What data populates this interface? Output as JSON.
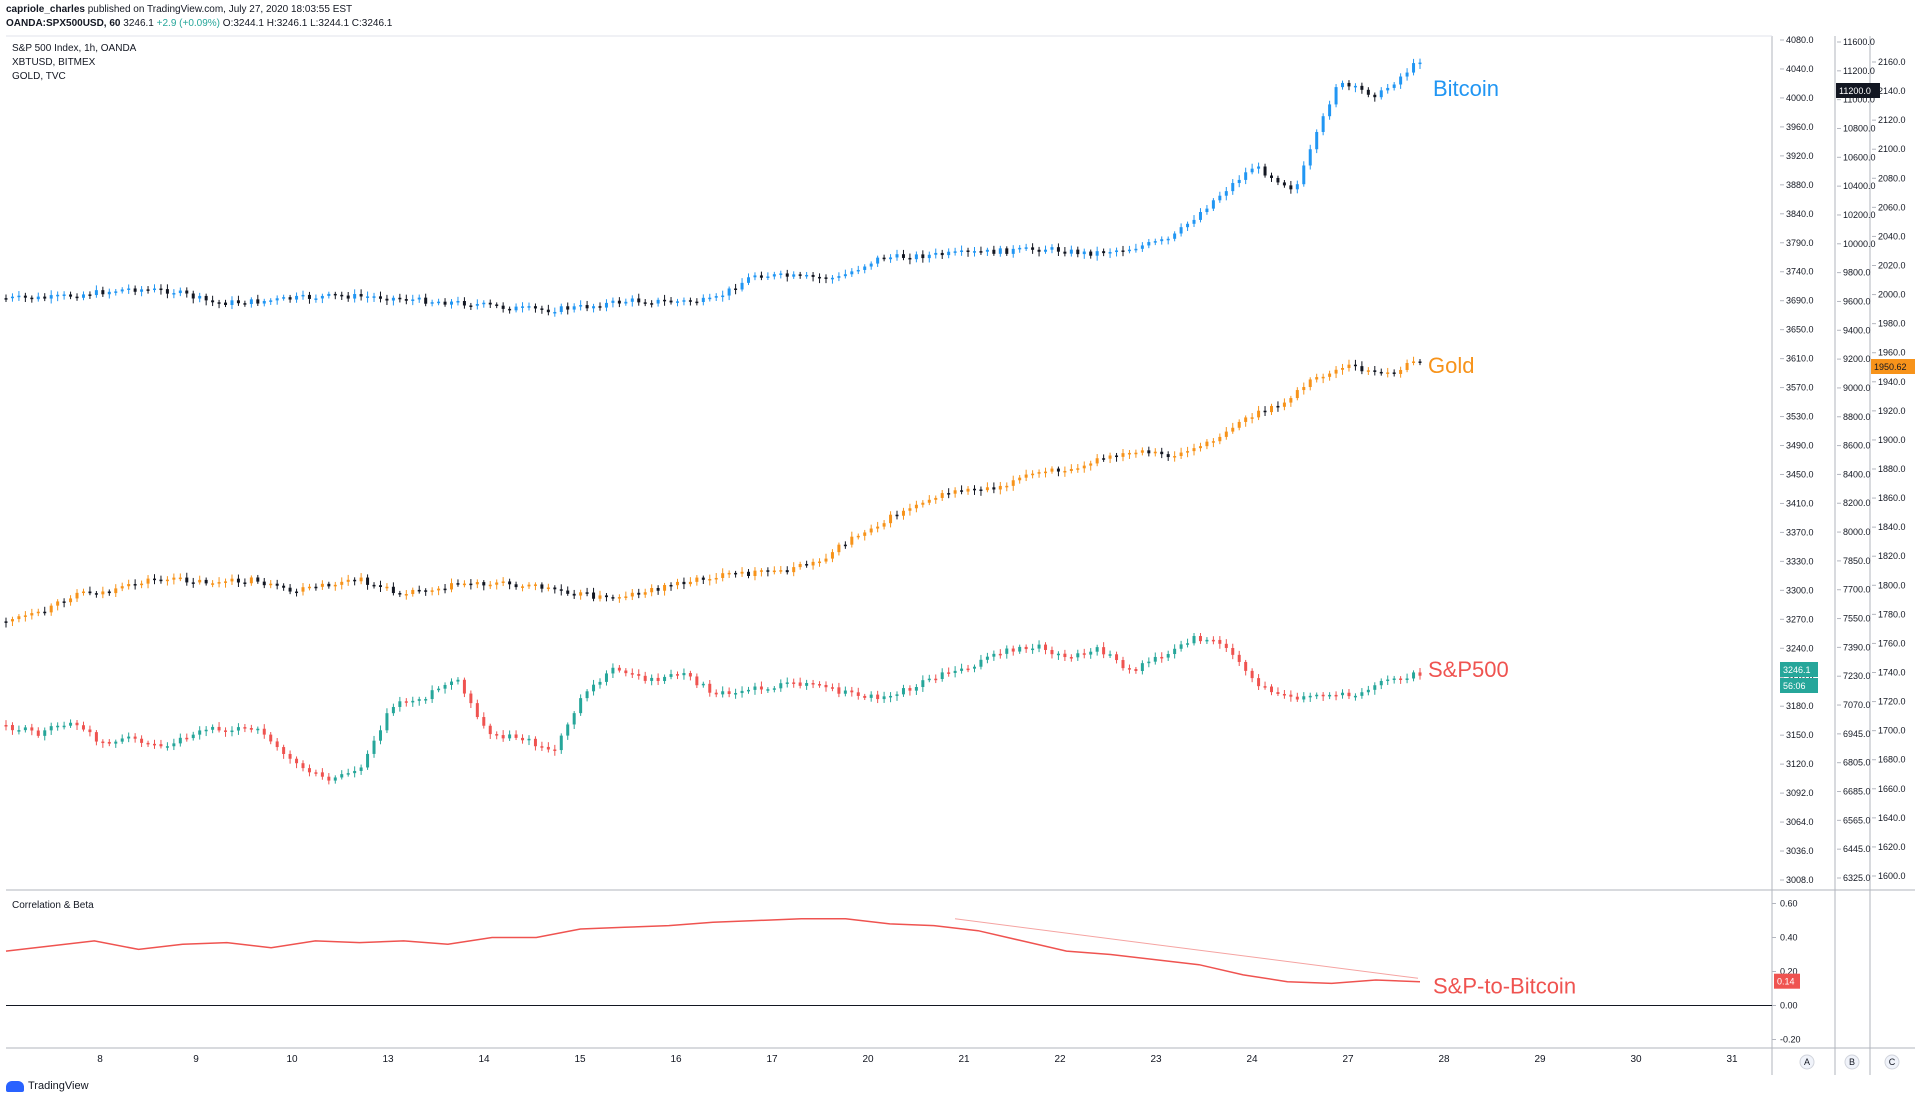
{
  "header": {
    "user": "capriole_charles",
    "published": "published on TradingView.com, July 27, 2020 18:03:55 EST",
    "symbol": "OANDA:SPX500USD, 60",
    "last": "3246.1",
    "change": "+2.9 (+0.09%)",
    "ohlc": "O:3244.1 H:3246.1 L:3244.1 C:3246.1"
  },
  "legend": [
    "S&P 500 Index, 1h, OANDA",
    "XBTUSD, BITMEX",
    "GOLD, TVC"
  ],
  "brand": "TradingView",
  "colors": {
    "bitcoin": "#2196f3",
    "gold": "#f7931a",
    "sp500_up": "#26a69a",
    "sp500_down": "#ef5350",
    "bearish": "#131722",
    "corr": "#ef5350",
    "grid": "#e0e3eb",
    "bg": "#ffffff"
  },
  "chart_data": [
    {
      "type": "candlestick",
      "x_ticks": [
        "8",
        "9",
        "10",
        "13",
        "14",
        "15",
        "16",
        "17",
        "20",
        "21",
        "22",
        "23",
        "24",
        "27",
        "28",
        "29",
        "30",
        "31"
      ],
      "scale_labels": [
        "A",
        "B",
        "C"
      ],
      "series": [
        {
          "name": "S&P500",
          "axis_ticks": [
            "4080.0",
            "4040.0",
            "4000.0",
            "3960.0",
            "3920.0",
            "3880.0",
            "3840.0",
            "3790.0",
            "3740.0",
            "3690.0",
            "3650.0",
            "3610.0",
            "3570.0",
            "3530.0",
            "3490.0",
            "3450.0",
            "3410.0",
            "3370.0",
            "3330.0",
            "3300.0",
            "3270.0",
            "3240.0",
            "3210.0",
            "3180.0",
            "3150.0",
            "3120.0",
            "3092.0",
            "3064.0",
            "3036.0",
            "3008.0"
          ],
          "last_value": "3246.1",
          "countdown": "56:06",
          "path": [
            3190,
            3182,
            3194,
            3172,
            3176,
            3170,
            3186,
            3188,
            3184,
            3150,
            3132,
            3144,
            3212,
            3220,
            3240,
            3180,
            3178,
            3160,
            3228,
            3252,
            3238,
            3246,
            3226,
            3228,
            3232,
            3236,
            3226,
            3220,
            3228,
            3244,
            3254,
            3270,
            3276,
            3262,
            3272,
            3248,
            3266,
            3284,
            3276,
            3232,
            3218,
            3222,
            3224,
            3238,
            3246
          ]
        },
        {
          "name": "Gold",
          "axis_ticks": [
            "2160.0",
            "2140.0",
            "2120.0",
            "2100.0",
            "2080.0",
            "2060.0",
            "2040.0",
            "2020.0",
            "2000.0",
            "1980.0",
            "1960.0",
            "1940.0",
            "1920.0",
            "1900.0",
            "1880.0",
            "1860.0",
            "1840.0",
            "1820.0",
            "1800.0",
            "1780.0",
            "1760.0",
            "1740.0",
            "1720.0",
            "1700.0",
            "1680.0",
            "1660.0",
            "1640.0",
            "1620.0",
            "1600.0"
          ],
          "last_value": "1950.62",
          "path": [
            1782,
            1786,
            1800,
            1800,
            1808,
            1808,
            1806,
            1808,
            1800,
            1804,
            1808,
            1800,
            1802,
            1806,
            1806,
            1804,
            1800,
            1796,
            1800,
            1806,
            1810,
            1812,
            1814,
            1820,
            1836,
            1848,
            1860,
            1866,
            1868,
            1876,
            1880,
            1886,
            1890,
            1888,
            1896,
            1912,
            1920,
            1938,
            1946,
            1940,
            1950
          ]
        },
        {
          "name": "Bitcoin",
          "axis_ticks": [
            "11600.0",
            "11200.0",
            "11000.0",
            "10800.0",
            "10600.0",
            "10400.0",
            "10200.0",
            "10000.0",
            "9800.0",
            "9600.0",
            "9400.0",
            "9200.0",
            "9000.0",
            "8800.0",
            "8600.0",
            "8400.0",
            "8200.0",
            "8000.0",
            "7850.0",
            "7700.0",
            "7550.0",
            "7390.0",
            "7230.0",
            "7070.0",
            "6945.0",
            "6805.0",
            "6685.0",
            "6565.0",
            "6445.0",
            "6325.0"
          ],
          "last_value": "11200.0",
          "path": [
            9180,
            9180,
            9220,
            9260,
            9240,
            9140,
            9150,
            9180,
            9200,
            9190,
            9160,
            9140,
            9100,
            9080,
            9110,
            9160,
            9150,
            9160,
            9380,
            9360,
            9350,
            9520,
            9540,
            9560,
            9580,
            9600,
            9560,
            9600,
            9680,
            10000,
            10300,
            10100,
            11000,
            10900,
            11200
          ]
        }
      ]
    },
    {
      "type": "line",
      "title": "Correlation & Beta",
      "series": [
        {
          "name": "S&P-to-Bitcoin",
          "last_value": "0.14"
        }
      ],
      "y_ticks": [
        "0.60",
        "0.40",
        "0.20",
        "0.00",
        "-0.20"
      ],
      "ylim": [
        -0.25,
        0.65
      ],
      "path": [
        0.32,
        0.35,
        0.38,
        0.33,
        0.36,
        0.37,
        0.34,
        0.38,
        0.37,
        0.38,
        0.36,
        0.4,
        0.4,
        0.45,
        0.46,
        0.47,
        0.49,
        0.5,
        0.51,
        0.51,
        0.48,
        0.47,
        0.44,
        0.38,
        0.32,
        0.3,
        0.27,
        0.24,
        0.18,
        0.14,
        0.13,
        0.15,
        0.14
      ]
    }
  ],
  "annotations": {
    "bitcoin": "Bitcoin",
    "gold": "Gold",
    "sp500": "S&P500",
    "corr": "S&P-to-Bitcoin"
  }
}
